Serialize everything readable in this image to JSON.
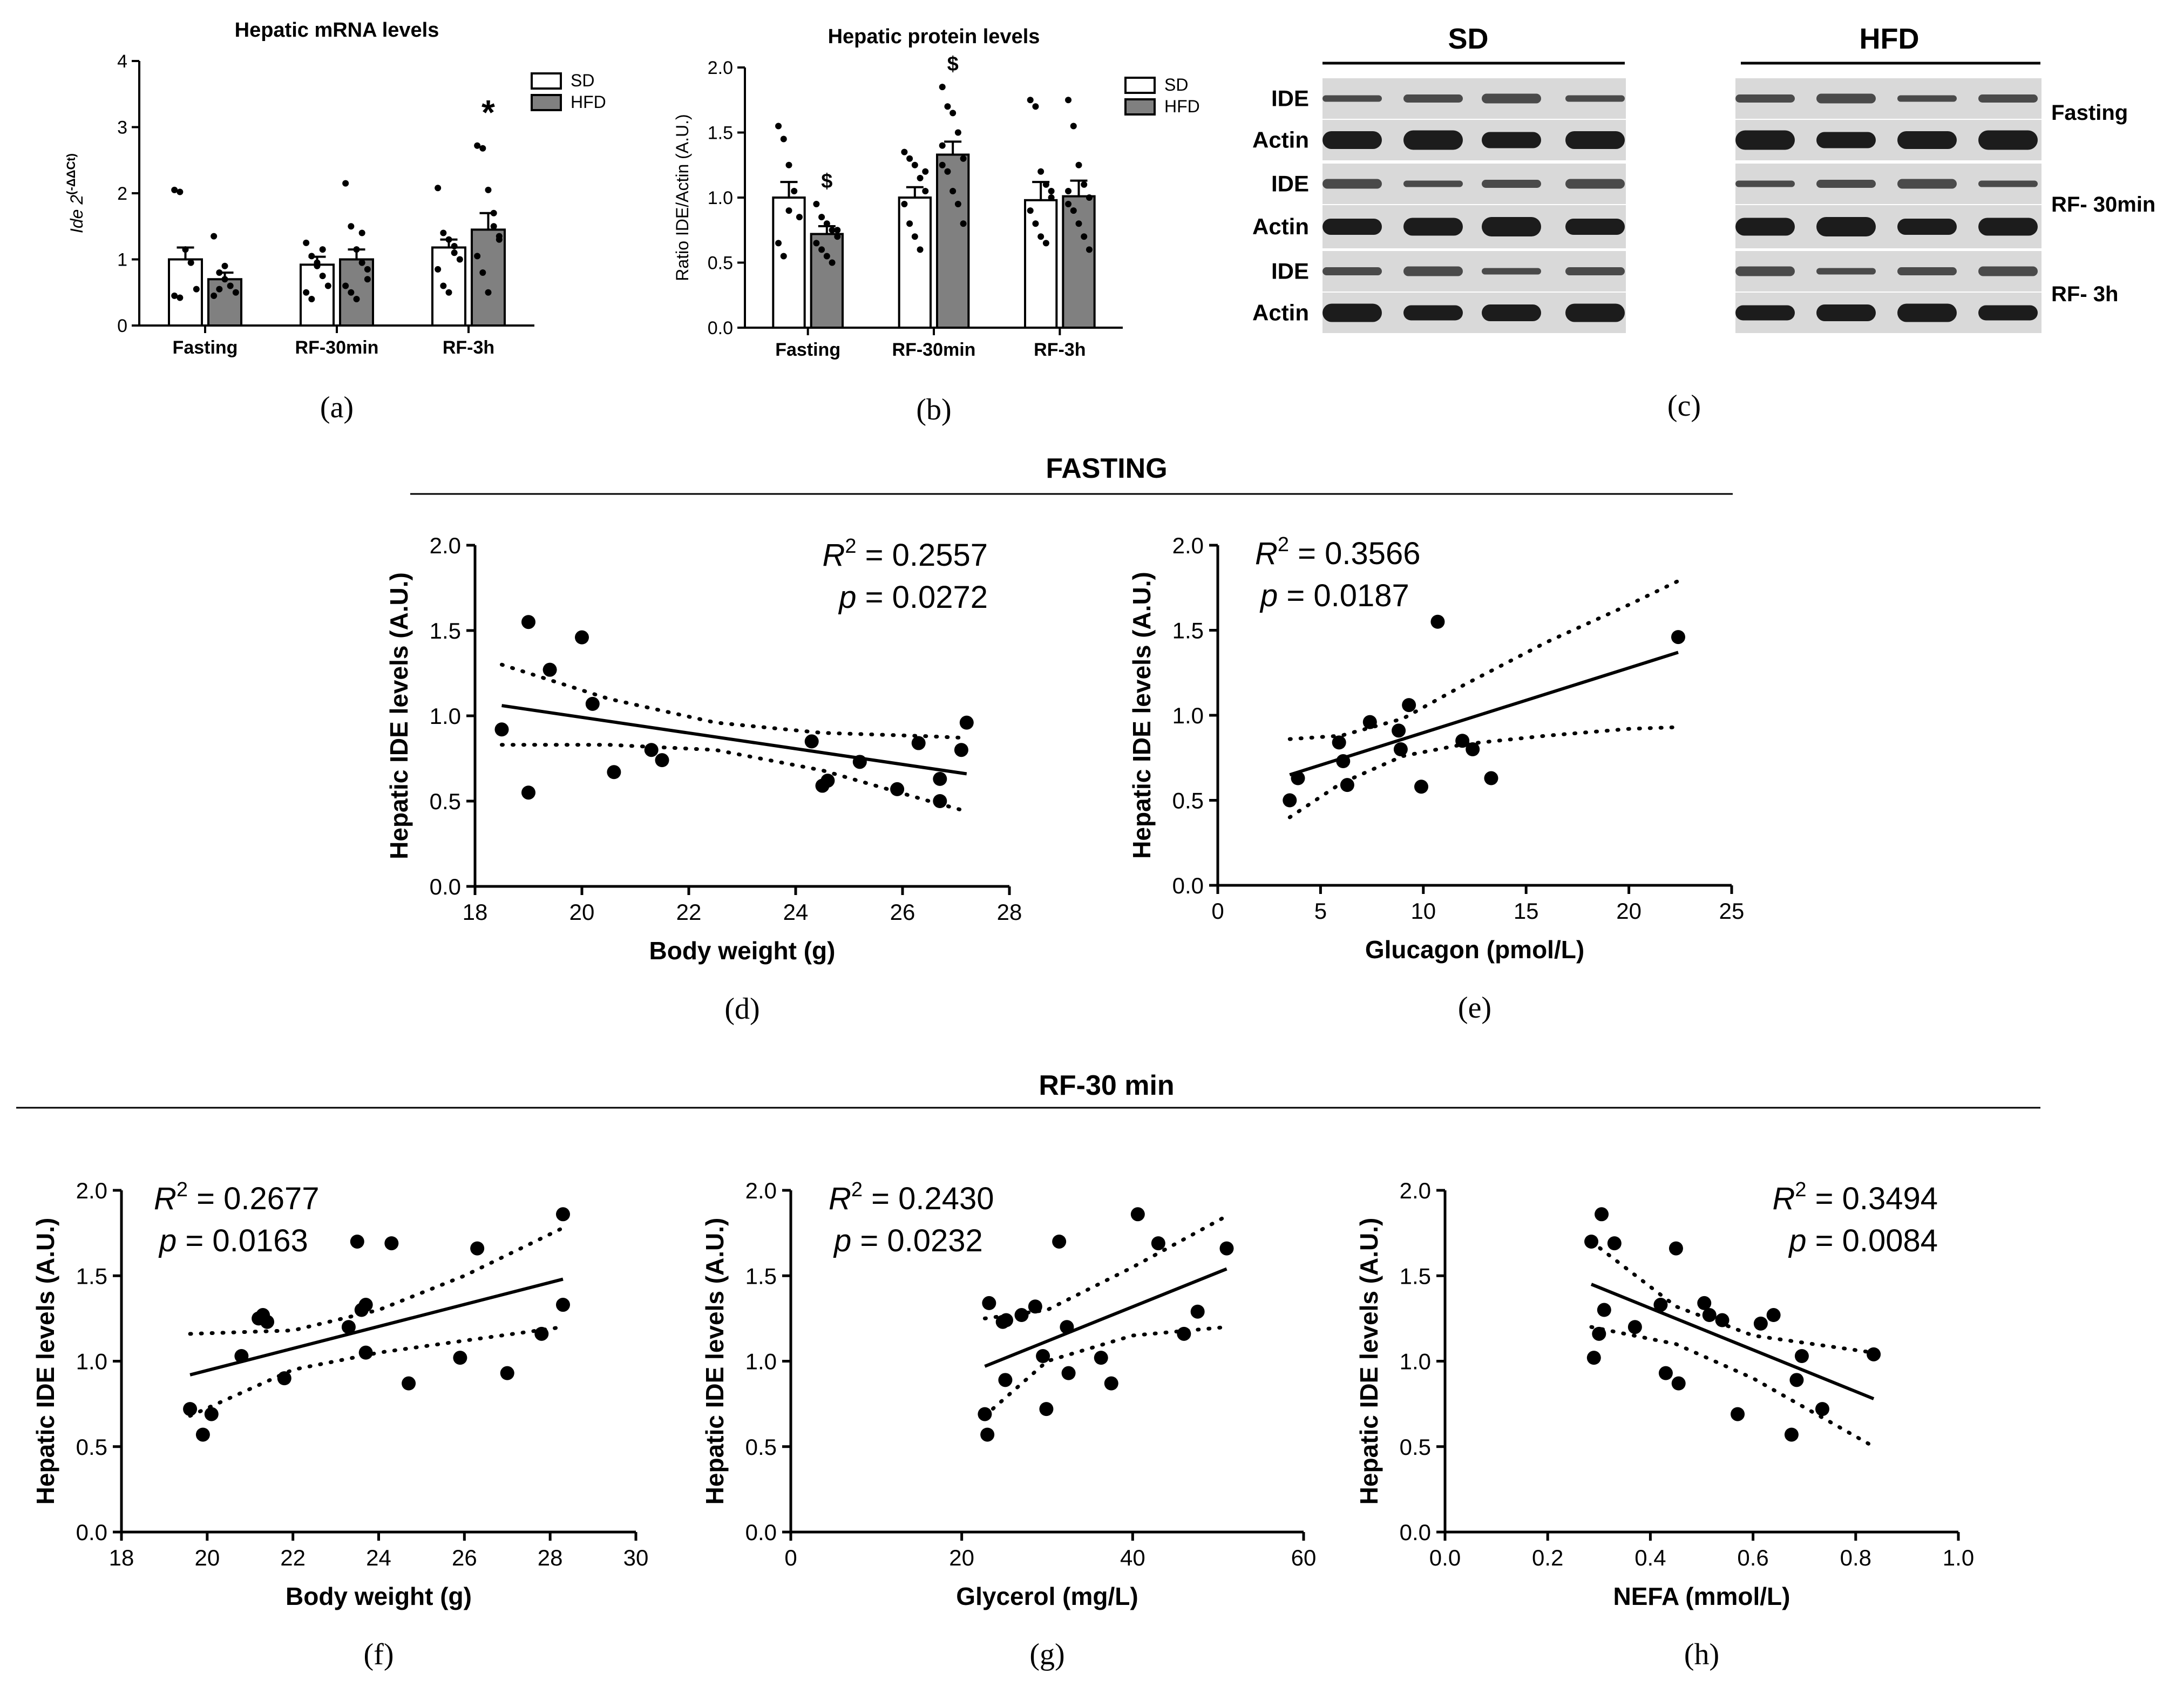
{
  "chart_data": [
    {
      "panel": "a",
      "type": "bar",
      "title": "Hepatic mRNA levels",
      "ylabel": "Ide 2(-ΔΔCt)",
      "ylabel_main": "Ide 2",
      "ylabel_sup": "(-ΔΔCt)",
      "xlabel": "",
      "ylim": [
        0,
        4
      ],
      "yticks": [
        "0",
        "1",
        "2",
        "3",
        "4"
      ],
      "categories": [
        "Fasting",
        "RF-30min",
        "RF-3h"
      ],
      "series": [
        {
          "name": "SD",
          "values": [
            1.0,
            0.92,
            1.18
          ],
          "sem": [
            0.18,
            0.12,
            0.12
          ],
          "points": [
            [
              2.05,
              2.02,
              1.15,
              0.95,
              0.55,
              0.45,
              0.42
            ],
            [
              1.25,
              1.05,
              0.9,
              0.75,
              0.6,
              0.5,
              0.4,
              0.95,
              1.15
            ],
            [
              2.08,
              1.4,
              1.3,
              1.1,
              1.0,
              0.85,
              0.6,
              0.5,
              1.2
            ]
          ]
        },
        {
          "name": "HFD",
          "values": [
            0.7,
            1.0,
            1.45
          ],
          "sem": [
            0.1,
            0.15,
            0.25
          ],
          "points": [
            [
              1.35,
              0.8,
              0.7,
              0.6,
              0.5,
              0.45,
              0.55,
              0.9
            ],
            [
              2.15,
              1.5,
              1.15,
              0.95,
              0.85,
              0.6,
              0.5,
              0.4,
              1.4,
              0.7
            ],
            [
              2.72,
              2.68,
              2.05,
              1.7,
              1.3,
              1.05,
              0.8,
              0.5,
              1.5,
              1.35
            ]
          ]
        }
      ],
      "annotations": [
        {
          "category": "RF-3h",
          "series": "HFD",
          "text": "*"
        }
      ],
      "legend": [
        "SD",
        "HFD"
      ],
      "label": "(a)"
    },
    {
      "panel": "b",
      "type": "bar",
      "title": "Hepatic protein levels",
      "ylabel": "Ratio IDE/Actin (A.U.)",
      "xlabel": "",
      "ylim": [
        0,
        2.0
      ],
      "yticks": [
        "0.0",
        "0.5",
        "1.0",
        "1.5",
        "2.0"
      ],
      "categories": [
        "Fasting",
        "RF-30min",
        "RF-3h"
      ],
      "series": [
        {
          "name": "SD",
          "values": [
            1.0,
            1.0,
            0.98
          ],
          "sem": [
            0.12,
            0.08,
            0.14
          ],
          "points": [
            [
              1.55,
              1.45,
              1.25,
              1.05,
              0.85,
              0.65,
              0.55,
              0.9
            ],
            [
              1.35,
              1.3,
              1.25,
              1.15,
              1.05,
              0.95,
              0.8,
              0.7,
              0.6,
              1.2
            ],
            [
              1.75,
              1.7,
              1.2,
              1.1,
              1.0,
              0.9,
              0.8,
              0.7,
              0.65,
              1.05
            ]
          ]
        },
        {
          "name": "HFD",
          "values": [
            0.72,
            1.33,
            1.01
          ],
          "sem": [
            0.06,
            0.1,
            0.12
          ],
          "points": [
            [
              0.95,
              0.85,
              0.8,
              0.75,
              0.7,
              0.65,
              0.6,
              0.55,
              0.5,
              0.75
            ],
            [
              1.85,
              1.7,
              1.65,
              1.5,
              1.3,
              1.25,
              1.2,
              1.05,
              0.95,
              0.8,
              1.4
            ],
            [
              1.75,
              1.55,
              1.25,
              1.1,
              1.0,
              0.95,
              0.9,
              0.8,
              0.7,
              0.6,
              1.05
            ]
          ]
        }
      ],
      "annotations": [
        {
          "category": "Fasting",
          "series": "HFD",
          "text": "$"
        },
        {
          "category": "RF-30min",
          "series": "HFD",
          "text": "$"
        }
      ],
      "legend": [
        "SD",
        "HFD"
      ],
      "label": "(b)"
    },
    {
      "panel": "c",
      "type": "blot",
      "groups": [
        "SD",
        "HFD"
      ],
      "rows": [
        "IDE",
        "Actin",
        "IDE",
        "Actin",
        "IDE",
        "Actin"
      ],
      "conditions": [
        "Fasting",
        "RF- 30min",
        "RF- 3h"
      ],
      "label": "(c)"
    },
    {
      "panel": "d",
      "type": "scatter",
      "section_title": "FASTING",
      "xlabel": "Body weight (g)",
      "ylabel": "Hepatic IDE levels (A.U.)",
      "xlim": [
        18,
        28
      ],
      "ylim": [
        0,
        2.0
      ],
      "xticks": [
        "18",
        "20",
        "22",
        "24",
        "26",
        "28"
      ],
      "yticks": [
        "0.0",
        "0.5",
        "1.0",
        "1.5",
        "2.0"
      ],
      "x": [
        18.5,
        19.0,
        19.0,
        19.4,
        20.0,
        20.2,
        20.6,
        21.3,
        21.5,
        24.3,
        24.5,
        24.6,
        25.2,
        25.9,
        26.3,
        26.7,
        26.7,
        27.1,
        27.2
      ],
      "y": [
        0.92,
        1.55,
        0.55,
        1.27,
        1.46,
        1.07,
        0.67,
        0.8,
        0.74,
        0.85,
        0.59,
        0.62,
        0.73,
        0.57,
        0.84,
        0.5,
        0.63,
        0.8,
        0.96
      ],
      "fit": {
        "x": [
          18.5,
          27.2
        ],
        "y": [
          1.06,
          0.66
        ]
      },
      "ci_upper": {
        "x": [
          18.5,
          20.5,
          22.5,
          24.5,
          26.5,
          27.2
        ],
        "y": [
          1.3,
          1.1,
          0.96,
          0.9,
          0.88,
          0.87
        ]
      },
      "ci_lower": {
        "x": [
          18.5,
          20.5,
          22.5,
          24.5,
          26.5,
          27.2
        ],
        "y": [
          0.83,
          0.83,
          0.8,
          0.68,
          0.5,
          0.44
        ]
      },
      "r2_label": "R",
      "r2_sup": "2",
      "r2_value": " = 0.2557",
      "p_label": "p",
      "p_value": " = 0.0272",
      "label": "(d)"
    },
    {
      "panel": "e",
      "type": "scatter",
      "xlabel": "Glucagon (pmol/L)",
      "ylabel": "Hepatic IDE levels (A.U.)",
      "xlim": [
        0,
        25
      ],
      "ylim": [
        0,
        2.0
      ],
      "xticks": [
        "0",
        "5",
        "10",
        "15",
        "20",
        "25"
      ],
      "yticks": [
        "0.0",
        "0.5",
        "1.0",
        "1.5",
        "2.0"
      ],
      "x": [
        3.5,
        3.9,
        5.9,
        6.1,
        6.3,
        7.4,
        8.8,
        8.9,
        9.3,
        9.9,
        10.7,
        11.9,
        12.4,
        13.3,
        22.4
      ],
      "y": [
        0.5,
        0.63,
        0.84,
        0.73,
        0.59,
        0.96,
        0.91,
        0.8,
        1.06,
        0.58,
        1.55,
        0.85,
        0.8,
        0.63,
        1.46
      ],
      "fit": {
        "x": [
          3.5,
          22.4
        ],
        "y": [
          0.65,
          1.37
        ]
      },
      "ci_upper": {
        "x": [
          3.5,
          6,
          9,
          12,
          16,
          20,
          22.4
        ],
        "y": [
          0.86,
          0.88,
          0.98,
          1.18,
          1.43,
          1.65,
          1.79
        ]
      },
      "ci_lower": {
        "x": [
          3.5,
          6,
          9,
          12,
          16,
          20,
          22.4
        ],
        "y": [
          0.4,
          0.6,
          0.76,
          0.83,
          0.88,
          0.92,
          0.93
        ]
      },
      "r2_label": "R",
      "r2_sup": "2",
      "r2_value": " = 0.3566",
      "p_label": "p",
      "p_value": " = 0.0187",
      "label": "(e)"
    },
    {
      "panel": "f",
      "type": "scatter",
      "section_title": "RF-30 min",
      "xlabel": "Body weight (g)",
      "ylabel": "Hepatic IDE levels (A.U.)",
      "xlim": [
        18,
        30
      ],
      "ylim": [
        0,
        2.0
      ],
      "xticks": [
        "18",
        "20",
        "22",
        "24",
        "26",
        "28",
        "30"
      ],
      "yticks": [
        "0.0",
        "0.5",
        "1.0",
        "1.5",
        "2.0"
      ],
      "x": [
        19.6,
        19.9,
        20.1,
        20.8,
        21.2,
        21.3,
        21.4,
        21.8,
        23.3,
        23.5,
        23.6,
        23.7,
        23.7,
        24.3,
        24.7,
        25.9,
        26.3,
        27.0,
        27.8,
        28.3,
        28.3
      ],
      "y": [
        0.72,
        0.57,
        0.69,
        1.03,
        1.25,
        1.27,
        1.23,
        0.9,
        1.2,
        1.7,
        1.3,
        1.05,
        1.33,
        1.69,
        0.87,
        1.02,
        1.66,
        0.93,
        1.16,
        1.86,
        1.33
      ],
      "fit": {
        "x": [
          19.6,
          28.3
        ],
        "y": [
          0.92,
          1.48
        ]
      },
      "ci_upper": {
        "x": [
          19.6,
          22,
          24,
          26,
          28.3
        ],
        "y": [
          1.16,
          1.18,
          1.3,
          1.5,
          1.78
        ]
      },
      "ci_lower": {
        "x": [
          19.6,
          22,
          24,
          26,
          28.3
        ],
        "y": [
          0.68,
          0.95,
          1.05,
          1.12,
          1.2
        ]
      },
      "r2_label": "R",
      "r2_sup": "2",
      "r2_value": " = 0.2677",
      "p_label": "p",
      "p_value": " = 0.0163",
      "label": "(f)"
    },
    {
      "panel": "g",
      "type": "scatter",
      "xlabel": "Glycerol (mg/L)",
      "ylabel": "Hepatic IDE levels (A.U.)",
      "xlim": [
        0,
        60
      ],
      "ylim": [
        0,
        2.0
      ],
      "xticks": [
        "0",
        "20",
        "40",
        "60"
      ],
      "yticks": [
        "0.0",
        "0.5",
        "1.0",
        "1.5",
        "2.0"
      ],
      "x": [
        22.7,
        23.0,
        23.2,
        24.8,
        25.2,
        25.1,
        27.0,
        28.6,
        29.5,
        29.9,
        31.4,
        32.3,
        32.5,
        36.3,
        37.5,
        40.6,
        43.0,
        46.0,
        47.6,
        51.0
      ],
      "y": [
        0.69,
        0.57,
        1.34,
        1.23,
        1.24,
        0.89,
        1.27,
        1.32,
        1.03,
        0.72,
        1.7,
        1.2,
        0.93,
        1.02,
        0.87,
        1.86,
        1.69,
        1.16,
        1.29,
        1.66
      ],
      "fit": {
        "x": [
          22.7,
          51.0
        ],
        "y": [
          0.97,
          1.54
        ]
      },
      "ci_upper": {
        "x": [
          22.7,
          30,
          40,
          51
        ],
        "y": [
          1.25,
          1.3,
          1.55,
          1.85
        ]
      },
      "ci_lower": {
        "x": [
          22.7,
          30,
          40,
          51
        ],
        "y": [
          0.68,
          1.0,
          1.15,
          1.2
        ]
      },
      "r2_label": "R",
      "r2_sup": "2",
      "r2_value": " = 0.2430",
      "p_label": "p",
      "p_value": " = 0.0232",
      "label": "(g)"
    },
    {
      "panel": "h",
      "type": "scatter",
      "xlabel": "NEFA (mmol/L)",
      "ylabel": "Hepatic IDE levels (A.U.)",
      "xlim": [
        0.0,
        1.0
      ],
      "ylim": [
        0,
        2.0
      ],
      "xticks": [
        "0.0",
        "0.2",
        "0.4",
        "0.6",
        "0.8",
        "1.0"
      ],
      "yticks": [
        "0.0",
        "0.5",
        "1.0",
        "1.5",
        "2.0"
      ],
      "x": [
        0.285,
        0.29,
        0.3,
        0.305,
        0.31,
        0.33,
        0.37,
        0.42,
        0.43,
        0.45,
        0.455,
        0.505,
        0.515,
        0.54,
        0.57,
        0.615,
        0.64,
        0.675,
        0.685,
        0.695,
        0.735,
        0.835
      ],
      "y": [
        1.7,
        1.02,
        1.16,
        1.86,
        1.3,
        1.69,
        1.2,
        1.33,
        0.93,
        1.66,
        0.87,
        1.34,
        1.27,
        1.24,
        0.69,
        1.22,
        1.27,
        0.57,
        0.89,
        1.03,
        0.72,
        1.04
      ],
      "fit": {
        "x": [
          0.285,
          0.835
        ],
        "y": [
          1.45,
          0.78
        ]
      },
      "ci_upper": {
        "x": [
          0.285,
          0.45,
          0.6,
          0.835
        ],
        "y": [
          1.7,
          1.32,
          1.15,
          1.05
        ]
      },
      "ci_lower": {
        "x": [
          0.285,
          0.45,
          0.6,
          0.835
        ],
        "y": [
          1.2,
          1.1,
          0.9,
          0.5
        ]
      },
      "r2_label": "R",
      "r2_sup": "2",
      "r2_value": " = 0.3494",
      "p_label": "p",
      "p_value": " = 0.0084",
      "label": "(h)"
    }
  ]
}
